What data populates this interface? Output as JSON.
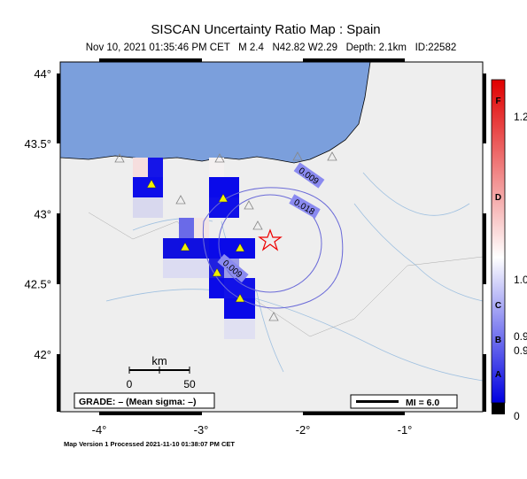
{
  "header": {
    "title": "SISCAN Uncertainty Ratio Map : Spain",
    "subtitle": "Nov 10, 2021 01:35:46 PM CET   M 2.4   N42.82 W2.29   Depth: 2.1km   ID:22582"
  },
  "map": {
    "lat_labels": [
      "44°",
      "43.5°",
      "43°",
      "42.5°",
      "42°"
    ],
    "lon_labels": [
      "-4°",
      "-3°",
      "-2°",
      "-1°"
    ],
    "contour_labels": [
      "0.009",
      "0.018",
      "0.009"
    ],
    "scale": {
      "unit": "km",
      "start": "0",
      "end": "50"
    },
    "grade": "GRADE: – (Mean sigma: –)",
    "intensity": "MI = 6.0"
  },
  "colorbar": {
    "grades": [
      "F",
      "D",
      "C",
      "B",
      "A"
    ],
    "values": [
      "1.2",
      "1.0",
      "0.9",
      "0.9",
      "0"
    ]
  },
  "footer": "Map Version 1 Processed 2021-11-10 01:38:07 PM CET"
}
